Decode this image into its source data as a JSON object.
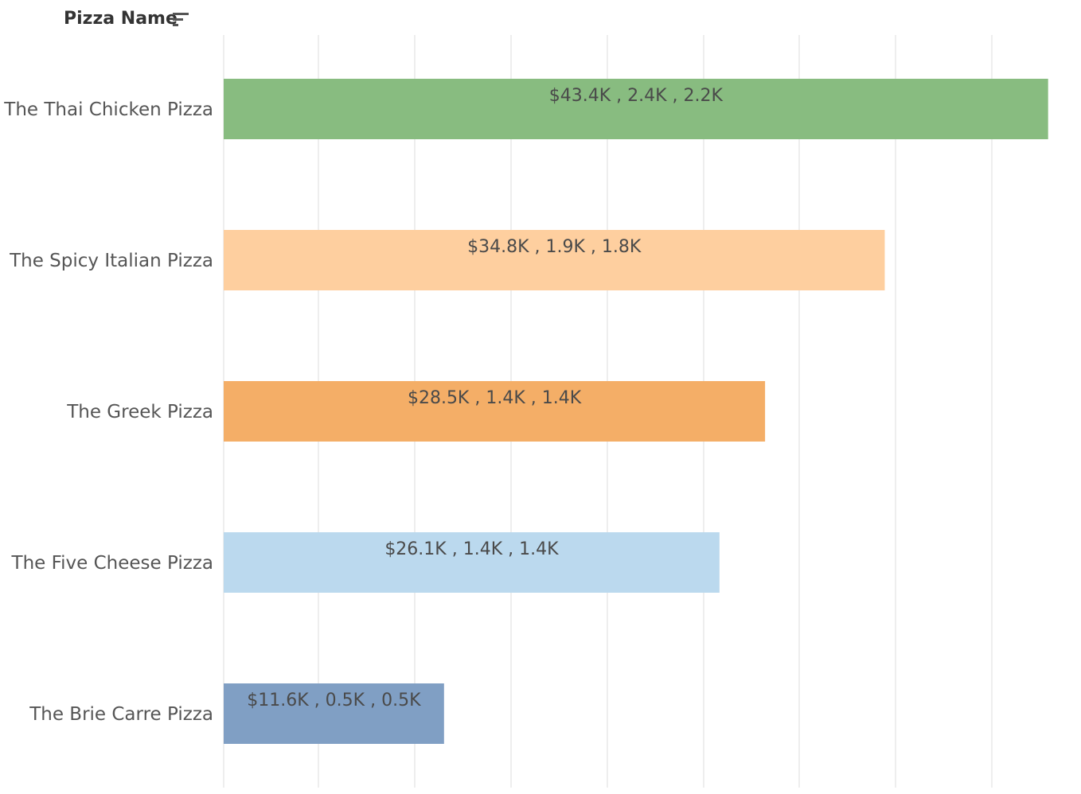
{
  "header": {
    "title": "Pizza Name",
    "sort_icon": "sort-descending-icon"
  },
  "chart_data": {
    "type": "bar",
    "orientation": "horizontal",
    "categories": [
      "The Thai Chicken Pizza",
      "The Spicy Italian Pizza",
      "The Greek Pizza",
      "The Five Cheese Pizza",
      "The Brie Carre Pizza"
    ],
    "values": [
      43.4,
      34.8,
      28.5,
      26.1,
      11.6
    ],
    "value_unit": "$K",
    "data_labels": [
      "$43.4K , 2.4K , 2.2K",
      "$34.8K , 1.9K , 1.8K",
      "$28.5K , 1.4K , 1.4K",
      "$26.1K , 1.4K , 1.4K",
      "$11.6K , 0.5K , 0.5K"
    ],
    "colors": [
      "#88bc80",
      "#fecf9f",
      "#f4ae67",
      "#bbd9ee",
      "#809fc4"
    ],
    "xlim": [
      0,
      44
    ],
    "grid": true,
    "legend": "none"
  }
}
